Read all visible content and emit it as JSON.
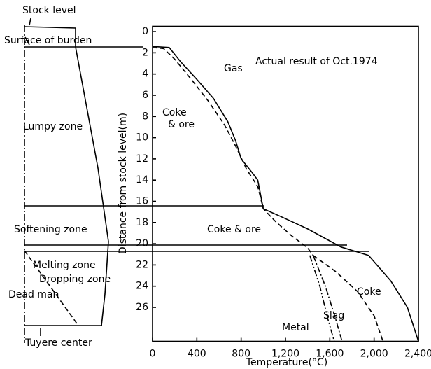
{
  "chart_data": {
    "type": "line",
    "annotation": "Actual result of Oct.1974",
    "upper_label": [
      "Coke",
      "& ore"
    ],
    "xlabel": "Temperature(°C)",
    "ylabel": "Distance from stock level(m)",
    "xlim": [
      0,
      2400
    ],
    "ylim": [
      -0.5,
      29.2
    ],
    "inverted_y": true,
    "xticks": [
      0,
      400,
      800,
      {
        "value": 1200,
        "label": "1,200"
      },
      {
        "value": 1600,
        "label": "1,600"
      },
      {
        "value": 2000,
        "label": "2,000"
      },
      {
        "value": 2400,
        "label": "2,400"
      }
    ],
    "yticks": [
      0,
      2,
      4,
      6,
      8,
      10,
      12,
      14,
      16,
      18,
      20,
      22,
      24,
      26
    ],
    "series": [
      {
        "name": "Gas",
        "color": "#000000",
        "style": "solid",
        "x": [
          0,
          150,
          250,
          400,
          550,
          680,
          750,
          800,
          900,
          950,
          1000,
          1150,
          1400,
          1700,
          1950,
          2150,
          2300,
          2400
        ],
        "values": [
          1.4,
          1.5,
          2.8,
          4.5,
          6.3,
          8.5,
          10.3,
          12,
          13.3,
          14,
          16.7,
          17.4,
          18.6,
          20.3,
          21.1,
          23.5,
          26,
          29.2
        ]
      },
      {
        "name": "Coke & ore",
        "color": "#000000",
        "style": "dashed",
        "x": [
          0,
          100,
          200,
          350,
          500,
          650,
          750,
          850,
          950,
          1000,
          1100,
          1250,
          1400,
          1450
        ],
        "values": [
          1.5,
          1.6,
          2.6,
          4.5,
          6.5,
          8.8,
          10.8,
          13,
          14.6,
          16.7,
          17.8,
          19.2,
          20.4,
          21.1
        ]
      },
      {
        "name": "Coke",
        "color": "#000000",
        "style": "dashed",
        "x": [
          1450,
          1650,
          1850,
          2000,
          2080
        ],
        "values": [
          21.1,
          22.6,
          24.5,
          26.8,
          29.2
        ]
      },
      {
        "name": "Slag",
        "color": "#000000",
        "style": "dashdot",
        "x": [
          1450,
          1560,
          1650,
          1710
        ],
        "values": [
          21.1,
          24,
          27,
          29.2
        ]
      },
      {
        "name": "Metal",
        "color": "#000000",
        "style": "dashdotdot",
        "x": [
          1420,
          1510,
          1580,
          1640
        ],
        "values": [
          21.1,
          24,
          27,
          29.2
        ]
      }
    ]
  },
  "furnace_labels": [
    "Stock level",
    "Surface of burden",
    "Lumpy zone",
    "Softening zone",
    "Melting zone",
    "Dropping zone",
    "Dead man",
    "Tuyere center"
  ]
}
